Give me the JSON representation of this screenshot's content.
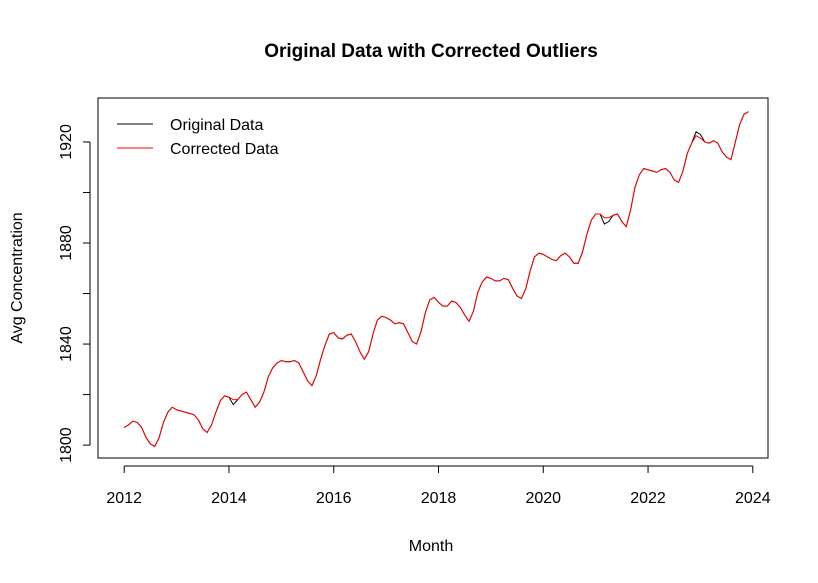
{
  "chart_data": {
    "type": "line",
    "title": "Original Data with Corrected Outliers",
    "x_label": "Month",
    "y_label": "Avg Concentration",
    "x": [
      2012.0,
      2012.083,
      2012.167,
      2012.25,
      2012.333,
      2012.417,
      2012.5,
      2012.583,
      2012.667,
      2012.75,
      2012.833,
      2012.917,
      2013.0,
      2013.083,
      2013.167,
      2013.25,
      2013.333,
      2013.417,
      2013.5,
      2013.583,
      2013.667,
      2013.75,
      2013.833,
      2013.917,
      2014.0,
      2014.083,
      2014.167,
      2014.25,
      2014.333,
      2014.417,
      2014.5,
      2014.583,
      2014.667,
      2014.75,
      2014.833,
      2014.917,
      2015.0,
      2015.083,
      2015.167,
      2015.25,
      2015.333,
      2015.417,
      2015.5,
      2015.583,
      2015.667,
      2015.75,
      2015.833,
      2015.917,
      2016.0,
      2016.083,
      2016.167,
      2016.25,
      2016.333,
      2016.417,
      2016.5,
      2016.583,
      2016.667,
      2016.75,
      2016.833,
      2016.917,
      2017.0,
      2017.083,
      2017.167,
      2017.25,
      2017.333,
      2017.417,
      2017.5,
      2017.583,
      2017.667,
      2017.75,
      2017.833,
      2017.917,
      2018.0,
      2018.083,
      2018.167,
      2018.25,
      2018.333,
      2018.417,
      2018.5,
      2018.583,
      2018.667,
      2018.75,
      2018.833,
      2018.917,
      2019.0,
      2019.083,
      2019.167,
      2019.25,
      2019.333,
      2019.417,
      2019.5,
      2019.583,
      2019.667,
      2019.75,
      2019.833,
      2019.917,
      2020.0,
      2020.083,
      2020.167,
      2020.25,
      2020.333,
      2020.417,
      2020.5,
      2020.583,
      2020.667,
      2020.75,
      2020.833,
      2020.917,
      2021.0,
      2021.083,
      2021.167,
      2021.25,
      2021.333,
      2021.417,
      2021.5,
      2021.583,
      2021.667,
      2021.75,
      2021.833,
      2021.917,
      2022.0,
      2022.083,
      2022.167,
      2022.25,
      2022.333,
      2022.417,
      2022.5,
      2022.583,
      2022.667,
      2022.75,
      2022.833,
      2022.917,
      2023.0,
      2023.083,
      2023.167,
      2023.25,
      2023.333,
      2023.417,
      2023.5,
      2023.583,
      2023.667,
      2023.75,
      2023.833,
      2023.917
    ],
    "series": [
      {
        "name": "Original Data",
        "color": "#000000",
        "values": [
          1807,
          1808,
          1809.5,
          1809,
          1807,
          1803,
          1800.5,
          1799.5,
          1803,
          1809,
          1813,
          1815,
          1814,
          1813.5,
          1813,
          1812.5,
          1812,
          1810,
          1806.5,
          1805,
          1808,
          1813,
          1817.5,
          1819.5,
          1819,
          1816,
          1818,
          1820,
          1821,
          1818,
          1815,
          1817,
          1821,
          1827,
          1830.5,
          1832.5,
          1833.5,
          1833,
          1833,
          1833.5,
          1832.5,
          1829,
          1825.5,
          1823.5,
          1827.5,
          1834,
          1839.5,
          1844,
          1844.5,
          1842.5,
          1842,
          1843.5,
          1844,
          1841,
          1837,
          1834,
          1837,
          1844,
          1849.5,
          1851,
          1850.5,
          1849.5,
          1848,
          1848.5,
          1848,
          1844.5,
          1841,
          1840,
          1845,
          1852.5,
          1857.5,
          1858.5,
          1856.5,
          1855,
          1855,
          1857,
          1856.5,
          1854.5,
          1851.5,
          1849,
          1853,
          1860.5,
          1864.5,
          1866.5,
          1866,
          1865,
          1865,
          1866,
          1865.5,
          1862,
          1859,
          1858,
          1862,
          1869,
          1874.5,
          1876,
          1875.5,
          1874.5,
          1873.5,
          1873,
          1875,
          1876,
          1874.5,
          1872,
          1872,
          1876.5,
          1883.5,
          1889,
          1891.5,
          1891.5,
          1887.5,
          1888.5,
          1891,
          1891.5,
          1888.5,
          1886.5,
          1893,
          1902,
          1907,
          1909.5,
          1909,
          1908.5,
          1908,
          1909,
          1909.5,
          1908,
          1905,
          1904,
          1908.5,
          1915.5,
          1919.5,
          1924,
          1923,
          1920,
          1919.5,
          1920.5,
          1919.5,
          1916,
          1914,
          1913,
          1920,
          1927,
          1931,
          1932
        ]
      },
      {
        "name": "Corrected Data",
        "color": "#ff0000",
        "values": [
          1807,
          1808,
          1809.5,
          1809,
          1807,
          1803,
          1800.5,
          1799.5,
          1803,
          1809,
          1813,
          1815,
          1814,
          1813.5,
          1813,
          1812.5,
          1812,
          1810,
          1806.5,
          1805,
          1808,
          1813,
          1817.5,
          1819.5,
          1819,
          1818,
          1818,
          1820,
          1821,
          1818,
          1815,
          1817,
          1821,
          1827,
          1830.5,
          1832.5,
          1833.5,
          1833,
          1833,
          1833.5,
          1832.5,
          1829,
          1825.5,
          1823.5,
          1827.5,
          1834,
          1839.5,
          1844,
          1844.5,
          1842.5,
          1842,
          1843.5,
          1844,
          1841,
          1837,
          1834,
          1837,
          1844,
          1849.5,
          1851,
          1850.5,
          1849.5,
          1848,
          1848.5,
          1848,
          1844.5,
          1841,
          1840,
          1845,
          1852.5,
          1857.5,
          1858.5,
          1856.5,
          1855,
          1855,
          1857,
          1856.5,
          1854.5,
          1851.5,
          1849,
          1853,
          1860.5,
          1864.5,
          1866.5,
          1866,
          1865,
          1865,
          1866,
          1865.5,
          1862,
          1859,
          1858,
          1862,
          1869,
          1874.5,
          1876,
          1875.5,
          1874.5,
          1873.5,
          1873,
          1875,
          1876,
          1874.5,
          1872,
          1872,
          1876.5,
          1883.5,
          1889,
          1891.5,
          1891.5,
          1890,
          1890,
          1891,
          1891.5,
          1888.5,
          1886.5,
          1893,
          1902,
          1907,
          1909.5,
          1909,
          1908.5,
          1908,
          1909,
          1909.5,
          1908,
          1905,
          1904,
          1908.5,
          1915.5,
          1919.5,
          1922.5,
          1921.5,
          1920,
          1919.5,
          1920.5,
          1919.5,
          1916,
          1914,
          1913,
          1920,
          1927,
          1931,
          1932
        ]
      }
    ],
    "xlim": [
      2011.5,
      2024.29
    ],
    "ylim": [
      1794.9,
      1937.4
    ],
    "xticks": [
      2012,
      2014,
      2016,
      2018,
      2020,
      2022,
      2024
    ],
    "yticks": [
      1800,
      1840,
      1880,
      1920
    ],
    "yminorticks": [
      1820,
      1860,
      1900
    ],
    "legend": "top-left"
  }
}
